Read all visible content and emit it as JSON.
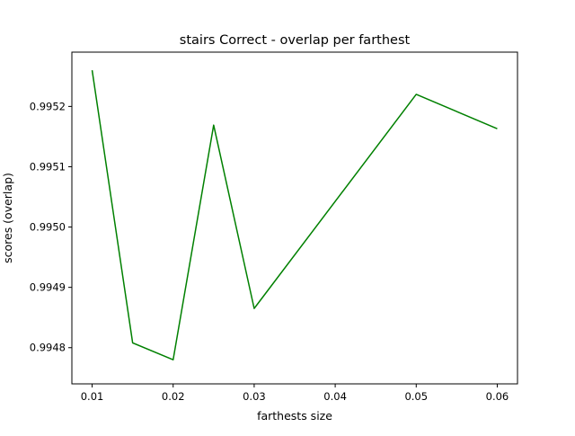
{
  "chart_data": {
    "type": "line",
    "title": "stairs Correct - overlap per farthest",
    "xlabel": "farthests size",
    "ylabel": "scores (overlap)",
    "xlim": [
      0.0075,
      0.0625
    ],
    "ylim": [
      0.99474,
      0.99529
    ],
    "x_ticks": [
      0.01,
      0.02,
      0.03,
      0.04,
      0.05,
      0.06
    ],
    "x_tick_labels": [
      "0.01",
      "0.02",
      "0.03",
      "0.04",
      "0.05",
      "0.06"
    ],
    "y_ticks": [
      0.9948,
      0.9949,
      0.995,
      0.9951,
      0.9952
    ],
    "y_tick_labels": [
      "0.9948",
      "0.9949",
      "0.9950",
      "0.9951",
      "0.9952"
    ],
    "grid": false,
    "legend": "none",
    "series": [
      {
        "color": "#008000",
        "x": [
          0.01,
          0.015,
          0.02,
          0.025,
          0.03,
          0.05,
          0.06
        ],
        "y": [
          0.99526,
          0.994808,
          0.99478,
          0.995169,
          0.994865,
          0.99522,
          0.995163
        ]
      }
    ]
  }
}
